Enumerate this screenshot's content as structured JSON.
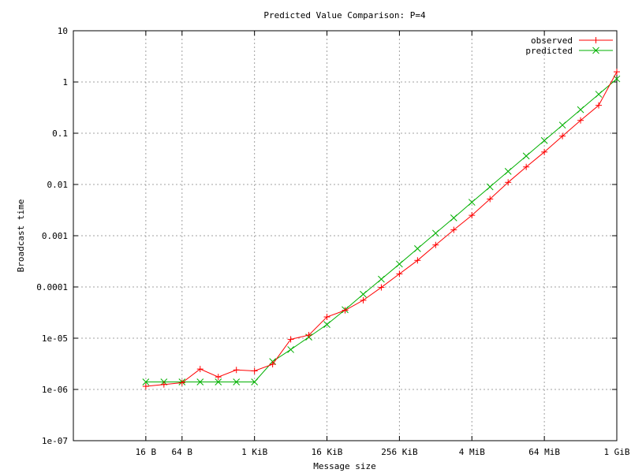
{
  "chart_data": {
    "type": "line",
    "title": "Predicted Value Comparison: P=4",
    "xlabel": "Message size",
    "ylabel": "Broadcast time",
    "x_scale": "log2",
    "y_scale": "log10",
    "xlim_bytes": [
      1,
      1073741824
    ],
    "ylim": [
      1e-07,
      10
    ],
    "x_ticks": [
      {
        "value": 16,
        "label": "16 B"
      },
      {
        "value": 64,
        "label": "64 B"
      },
      {
        "value": 1024,
        "label": "1 KiB"
      },
      {
        "value": 16384,
        "label": "16 KiB"
      },
      {
        "value": 262144,
        "label": "256 KiB"
      },
      {
        "value": 4194304,
        "label": "4 MiB"
      },
      {
        "value": 67108864,
        "label": "64 MiB"
      },
      {
        "value": 1073741824,
        "label": "1 GiB"
      }
    ],
    "y_ticks": [
      {
        "value": 1e-07,
        "label": "1e-07"
      },
      {
        "value": 1e-06,
        "label": "1e-06"
      },
      {
        "value": 1e-05,
        "label": "1e-05"
      },
      {
        "value": 0.0001,
        "label": "0.0001"
      },
      {
        "value": 0.001,
        "label": "0.001"
      },
      {
        "value": 0.01,
        "label": "0.01"
      },
      {
        "value": 0.1,
        "label": "0.1"
      },
      {
        "value": 1,
        "label": "1"
      },
      {
        "value": 10,
        "label": "10"
      }
    ],
    "grid": true,
    "legend_position": "top-right",
    "x": [
      16,
      32,
      64,
      128,
      256,
      512,
      1024,
      2048,
      4096,
      8192,
      16384,
      32768,
      65536,
      131072,
      262144,
      524288,
      1048576,
      2097152,
      4194304,
      8388608,
      16777216,
      33554432,
      67108864,
      134217728,
      268435456,
      536870912,
      1073741824
    ],
    "series": [
      {
        "name": "observed",
        "color": "#ff0000",
        "marker": "plus",
        "values": [
          1.15e-06,
          1.25e-06,
          1.35e-06,
          2.5e-06,
          1.75e-06,
          2.4e-06,
          2.3e-06,
          3.1e-06,
          9.5e-06,
          1.15e-05,
          2.6e-05,
          3.5e-05,
          5.5e-05,
          9.8e-05,
          0.00018,
          0.00033,
          0.00066,
          0.0013,
          0.0025,
          0.0052,
          0.011,
          0.022,
          0.043,
          0.088,
          0.178,
          0.35,
          1.58
        ]
      },
      {
        "name": "predicted",
        "color": "#00b000",
        "marker": "cross",
        "values": [
          1.4e-06,
          1.4e-06,
          1.4e-06,
          1.4e-06,
          1.4e-06,
          1.4e-06,
          1.4e-06,
          3.5e-06,
          6e-06,
          1.05e-05,
          1.85e-05,
          3.6e-05,
          7.2e-05,
          0.000142,
          0.00028,
          0.00056,
          0.00112,
          0.00223,
          0.0045,
          0.009,
          0.018,
          0.036,
          0.072,
          0.144,
          0.288,
          0.576,
          1.15
        ]
      }
    ]
  }
}
